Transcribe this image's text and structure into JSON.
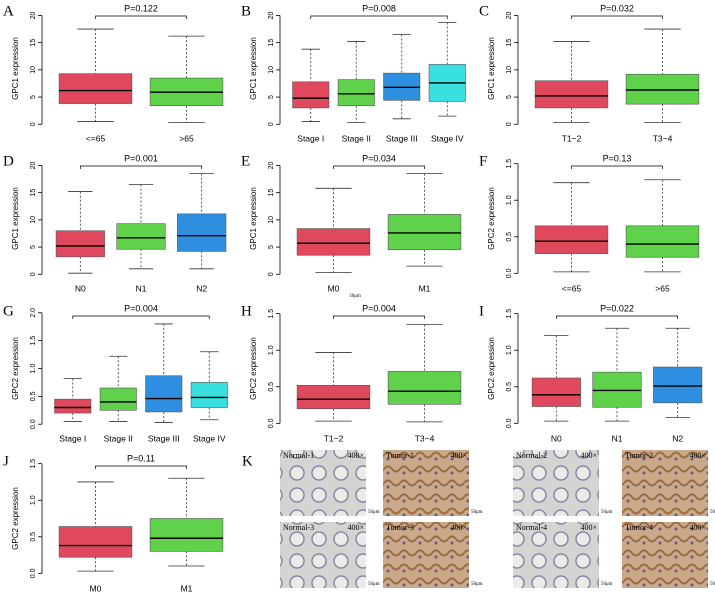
{
  "chart_data": [
    {
      "type": "box",
      "panel": "A",
      "ylabel": "GPC1 expression",
      "annotation": "P=0.122",
      "categories": [
        "<=65",
        ">65"
      ],
      "colors": [
        "#e0485e",
        "#5fd14b"
      ],
      "boxes": [
        {
          "min": 0.5,
          "q1": 3.8,
          "median": 6.2,
          "q3": 9.3,
          "max": 17.5
        },
        {
          "min": 0.3,
          "q1": 3.4,
          "median": 5.9,
          "q3": 8.5,
          "max": 16.2
        }
      ],
      "ylim": [
        -0.5,
        21
      ],
      "yticks": [
        0,
        5,
        10,
        15,
        20
      ]
    },
    {
      "type": "box",
      "panel": "B",
      "ylabel": "GPC1 expression",
      "annotation": "P=0.008",
      "categories": [
        "Stage I",
        "Stage II",
        "Stage III",
        "Stage IV"
      ],
      "colors": [
        "#e0485e",
        "#5fd14b",
        "#2e8fe0",
        "#38e0e0"
      ],
      "boxes": [
        {
          "min": 0.5,
          "q1": 3.0,
          "median": 4.8,
          "q3": 7.8,
          "max": 13.8
        },
        {
          "min": 0.3,
          "q1": 3.4,
          "median": 5.6,
          "q3": 8.2,
          "max": 15.2
        },
        {
          "min": 1.0,
          "q1": 4.4,
          "median": 6.8,
          "q3": 9.4,
          "max": 16.5
        },
        {
          "min": 1.5,
          "q1": 4.2,
          "median": 7.6,
          "q3": 11.0,
          "max": 18.7
        }
      ],
      "ylim": [
        -0.5,
        21
      ],
      "yticks": [
        0,
        5,
        10,
        15,
        20
      ]
    },
    {
      "type": "box",
      "panel": "C",
      "ylabel": "GPC1 expression",
      "annotation": "P=0.032",
      "categories": [
        "T1−2",
        "T3−4"
      ],
      "colors": [
        "#e0485e",
        "#5fd14b"
      ],
      "boxes": [
        {
          "min": 0.3,
          "q1": 3.0,
          "median": 5.2,
          "q3": 8.0,
          "max": 15.2
        },
        {
          "min": 0.3,
          "q1": 3.7,
          "median": 6.3,
          "q3": 9.2,
          "max": 17.5
        }
      ],
      "ylim": [
        -0.5,
        21
      ],
      "yticks": [
        0,
        5,
        10,
        15,
        20
      ]
    },
    {
      "type": "box",
      "panel": "D",
      "ylabel": "GPC1 expression",
      "annotation": "P=0.001",
      "categories": [
        "N0",
        "N1",
        "N2"
      ],
      "colors": [
        "#e0485e",
        "#5fd14b",
        "#2e8fe0"
      ],
      "boxes": [
        {
          "min": 0.2,
          "q1": 3.2,
          "median": 5.2,
          "q3": 8.0,
          "max": 15.2
        },
        {
          "min": 1.0,
          "q1": 4.6,
          "median": 6.7,
          "q3": 9.3,
          "max": 16.5
        },
        {
          "min": 1.0,
          "q1": 4.2,
          "median": 7.1,
          "q3": 11.1,
          "max": 18.5
        }
      ],
      "ylim": [
        -0.5,
        21
      ],
      "yticks": [
        0,
        5,
        10,
        15,
        20
      ]
    },
    {
      "type": "box",
      "panel": "E",
      "ylabel": "GPC1 expression",
      "annotation": "P=0.034",
      "categories": [
        "M0",
        "M1"
      ],
      "colors": [
        "#e0485e",
        "#5fd14b"
      ],
      "boxes": [
        {
          "min": 0.3,
          "q1": 3.5,
          "median": 5.7,
          "q3": 8.4,
          "max": 15.8
        },
        {
          "min": 1.5,
          "q1": 4.5,
          "median": 7.6,
          "q3": 11.0,
          "max": 18.5
        }
      ],
      "ylim": [
        -0.5,
        21
      ],
      "yticks": [
        0,
        5,
        10,
        15,
        20
      ]
    },
    {
      "type": "box",
      "panel": "F",
      "ylabel": "GPC2 expression",
      "annotation": "P=0.13",
      "categories": [
        "<=65",
        ">65"
      ],
      "colors": [
        "#e0485e",
        "#5fd14b"
      ],
      "boxes": [
        {
          "min": 0.02,
          "q1": 0.27,
          "median": 0.44,
          "q3": 0.65,
          "max": 1.24
        },
        {
          "min": 0.02,
          "q1": 0.22,
          "median": 0.4,
          "q3": 0.65,
          "max": 1.28
        }
      ],
      "ylim": [
        -0.05,
        1.55
      ],
      "yticks": [
        {
          "value": 0,
          "label": "0.0"
        },
        0.5,
        {
          "value": 1,
          "label": "1.0"
        },
        1.5
      ]
    },
    {
      "type": "box",
      "panel": "G",
      "ylabel": "GPC2 expression",
      "annotation": "P=0.004",
      "categories": [
        "Stage I",
        "Stage II",
        "Stage III",
        "Stage IV"
      ],
      "colors": [
        "#e0485e",
        "#5fd14b",
        "#2e8fe0",
        "#38e0e0"
      ],
      "boxes": [
        {
          "min": 0.05,
          "q1": 0.2,
          "median": 0.3,
          "q3": 0.45,
          "max": 0.82
        },
        {
          "min": 0.05,
          "q1": 0.25,
          "median": 0.4,
          "q3": 0.65,
          "max": 1.22
        },
        {
          "min": 0.03,
          "q1": 0.22,
          "median": 0.46,
          "q3": 0.87,
          "max": 1.8
        },
        {
          "min": 0.08,
          "q1": 0.3,
          "median": 0.48,
          "q3": 0.75,
          "max": 1.3
        }
      ],
      "ylim": [
        -0.05,
        2.05
      ],
      "yticks": [
        {
          "value": 0,
          "label": "0.0"
        },
        0.5,
        {
          "value": 1,
          "label": "1.0"
        },
        1.5,
        {
          "value": 2,
          "label": "2.0"
        }
      ]
    },
    {
      "type": "box",
      "panel": "H",
      "ylabel": "GPC2 expression",
      "annotation": "P=0.004",
      "categories": [
        "T1−2",
        "T3−4"
      ],
      "colors": [
        "#e0485e",
        "#5fd14b"
      ],
      "boxes": [
        {
          "min": 0.03,
          "q1": 0.2,
          "median": 0.33,
          "q3": 0.52,
          "max": 0.97
        },
        {
          "min": 0.02,
          "q1": 0.26,
          "median": 0.44,
          "q3": 0.71,
          "max": 1.35
        }
      ],
      "ylim": [
        -0.05,
        1.55
      ],
      "yticks": [
        {
          "value": 0,
          "label": "0.0"
        },
        0.5,
        {
          "value": 1,
          "label": "1.0"
        },
        1.5
      ]
    },
    {
      "type": "box",
      "panel": "I",
      "ylabel": "GPC2 expression",
      "annotation": "P=0.022",
      "categories": [
        "N0",
        "N1",
        "N2"
      ],
      "colors": [
        "#e0485e",
        "#5fd14b",
        "#2e8fe0"
      ],
      "boxes": [
        {
          "min": 0.03,
          "q1": 0.23,
          "median": 0.39,
          "q3": 0.62,
          "max": 1.2
        },
        {
          "min": 0.03,
          "q1": 0.22,
          "median": 0.45,
          "q3": 0.7,
          "max": 1.3
        },
        {
          "min": 0.08,
          "q1": 0.28,
          "median": 0.51,
          "q3": 0.77,
          "max": 1.3
        }
      ],
      "ylim": [
        -0.05,
        1.55
      ],
      "yticks": [
        {
          "value": 0,
          "label": "0.0"
        },
        0.5,
        {
          "value": 1,
          "label": "1.0"
        },
        1.5
      ]
    },
    {
      "type": "box",
      "panel": "J",
      "ylabel": "GPC2 expression",
      "annotation": "P=0.11",
      "categories": [
        "M0",
        "M1"
      ],
      "colors": [
        "#e0485e",
        "#5fd14b"
      ],
      "boxes": [
        {
          "min": 0.03,
          "q1": 0.22,
          "median": 0.38,
          "q3": 0.64,
          "max": 1.25
        },
        {
          "min": 0.1,
          "q1": 0.3,
          "median": 0.48,
          "q3": 0.75,
          "max": 1.3
        }
      ],
      "ylim": [
        -0.05,
        1.55
      ],
      "yticks": [
        {
          "value": 0,
          "label": "0.0"
        },
        0.5,
        {
          "value": 1,
          "label": "1.0"
        },
        1.5
      ]
    }
  ],
  "stray_label": "50μm",
  "panel_k": {
    "label": "K",
    "images": [
      {
        "name": "Normal-1",
        "magnification": "400×",
        "scale": "50μm"
      },
      {
        "name": "Tumor-1",
        "magnification": "400×",
        "scale": "50μm"
      },
      {
        "name": "Normal-2",
        "magnification": "400×",
        "scale": "50μm"
      },
      {
        "name": "Tumor-2",
        "magnification": "400×",
        "scale": "50μm"
      },
      {
        "name": "Normal-3",
        "magnification": "400×",
        "scale": "50μm"
      },
      {
        "name": "Tumor-3",
        "magnification": "400×",
        "scale": "50μm"
      },
      {
        "name": "Normal-4",
        "magnification": "400×",
        "scale": "50μm"
      },
      {
        "name": "Tumor-4",
        "magnification": "400×",
        "scale": "50μm"
      }
    ]
  }
}
